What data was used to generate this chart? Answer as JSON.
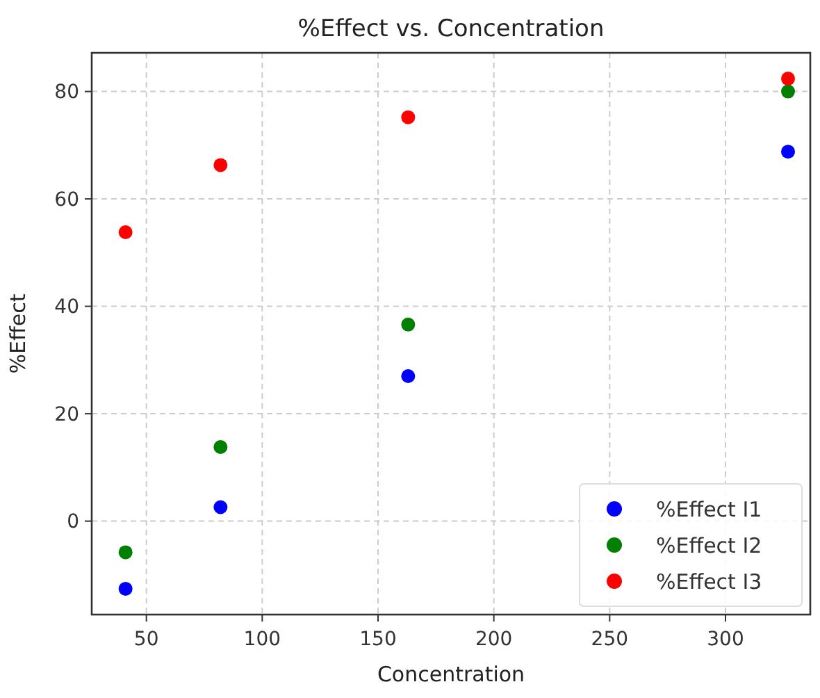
{
  "chart_data": {
    "type": "scatter",
    "title": "%Effect vs. Concentration",
    "xlabel": "Concentration",
    "ylabel": "%Effect",
    "x": [
      41,
      82,
      163,
      327
    ],
    "series": [
      {
        "name": "%Effect I1",
        "color": "#0000ff",
        "values": [
          -12.6,
          2.6,
          27.0,
          68.8
        ]
      },
      {
        "name": "%Effect I2",
        "color": "#008000",
        "values": [
          -5.8,
          13.8,
          36.6,
          80.0
        ]
      },
      {
        "name": "%Effect I3",
        "color": "#ff0000",
        "values": [
          53.8,
          66.3,
          75.2,
          82.4
        ]
      }
    ],
    "xlim": [
      26.4,
      336.6
    ],
    "ylim": [
      -17.4,
      87.2
    ],
    "xticks": [
      50,
      100,
      150,
      200,
      250,
      300
    ],
    "yticks": [
      0,
      20,
      40,
      60,
      80
    ],
    "grid": true,
    "legend": "bottom right",
    "marker": "circle"
  }
}
